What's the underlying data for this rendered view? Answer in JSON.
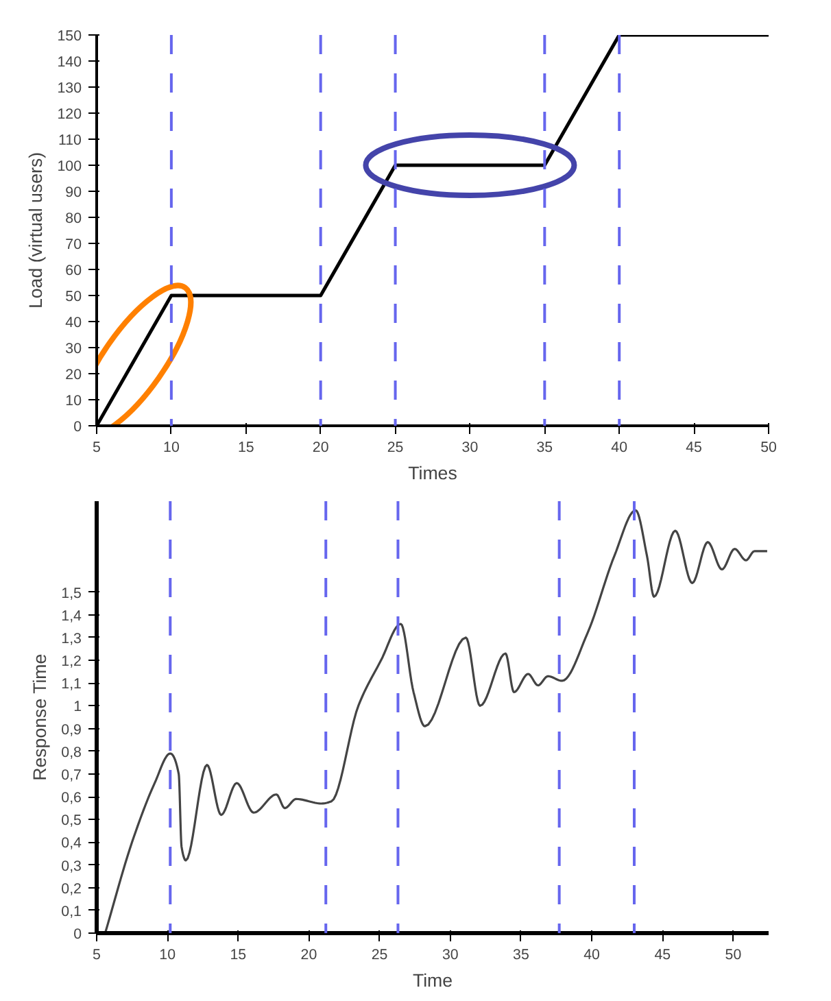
{
  "chart_data": [
    {
      "type": "line",
      "xlabel": "Times",
      "ylabel": "Load (virtual users)",
      "x": [
        5,
        10,
        20,
        25,
        35,
        40,
        50
      ],
      "series": [
        {
          "color": "#000000",
          "values": [
            0,
            50,
            50,
            100,
            100,
            150,
            150
          ]
        }
      ],
      "xlim": [
        5,
        50
      ],
      "xticks": [
        5,
        10,
        15,
        20,
        25,
        30,
        35,
        40,
        45,
        50
      ],
      "ylim": [
        0,
        150
      ],
      "yticks": [
        0,
        10,
        20,
        30,
        40,
        50,
        60,
        70,
        80,
        90,
        100,
        110,
        120,
        130,
        140,
        150
      ],
      "ref_lines": [
        {
          "axis": "x",
          "value": 10,
          "color": "#6666ee",
          "line_style": "dashed"
        },
        {
          "axis": "x",
          "value": 20,
          "color": "#6666ee",
          "line_style": "dashed"
        },
        {
          "axis": "x",
          "value": 25,
          "color": "#6666ee",
          "line_style": "dashed"
        },
        {
          "axis": "x",
          "value": 35,
          "color": "#6666ee",
          "line_style": "dashed"
        },
        {
          "axis": "x",
          "value": 40,
          "color": "#6666ee",
          "line_style": "dashed"
        }
      ],
      "grid": false,
      "line_style": "solid",
      "marker": "none"
    },
    {
      "type": "line",
      "xlabel": "Time",
      "ylabel": "Response Time",
      "x": [
        5.6,
        7.5,
        9.1,
        10.2,
        10.8,
        11.0,
        11.3,
        12.8,
        13.8,
        14.9,
        16.1,
        17.7,
        18.3,
        19.1,
        20.9,
        21.6,
        23.5,
        25.1,
        26.5,
        27.4,
        28.2,
        31.1,
        32.1,
        33.9,
        34.5,
        35.5,
        36.2,
        36.9,
        37.9,
        39.7,
        41.6,
        43.1,
        43.9,
        44.4,
        45.9,
        47.1,
        48.2,
        49.2,
        50.1,
        50.9,
        51.5,
        52.4
      ],
      "series": [
        {
          "color": "#444444",
          "values": [
            0,
            0.4,
            0.66,
            0.79,
            0.7,
            0.38,
            0.32,
            0.74,
            0.52,
            0.66,
            0.53,
            0.61,
            0.55,
            0.59,
            0.57,
            0.58,
            1.0,
            1.2,
            1.36,
            1.06,
            0.91,
            1.3,
            1.0,
            1.23,
            1.06,
            1.14,
            1.09,
            1.13,
            1.11,
            1.32,
            1.66,
            1.86,
            1.66,
            1.48,
            1.77,
            1.54,
            1.72,
            1.6,
            1.69,
            1.64,
            1.68,
            1.68
          ]
        }
      ],
      "xlim": [
        5,
        52.5
      ],
      "xticks": [
        5,
        10,
        15,
        20,
        25,
        30,
        35,
        40,
        45,
        50
      ],
      "ylim": [
        0,
        1.9
      ],
      "yticks": [
        0,
        {
          "value": 0.1,
          "label": "0,1"
        },
        {
          "value": 0.2,
          "label": "0,2"
        },
        {
          "value": 0.3,
          "label": "0,3"
        },
        {
          "value": 0.4,
          "label": "0,4"
        },
        {
          "value": 0.5,
          "label": "0,5"
        },
        {
          "value": 0.6,
          "label": "0,6"
        },
        {
          "value": 0.7,
          "label": "0,7"
        },
        {
          "value": 0.8,
          "label": "0,8"
        },
        {
          "value": 0.9,
          "label": "0,9"
        },
        1,
        {
          "value": 1.1,
          "label": "1,1"
        },
        {
          "value": 1.2,
          "label": "1,2"
        },
        {
          "value": 1.3,
          "label": "1,3"
        },
        {
          "value": 1.4,
          "label": "1,4"
        },
        {
          "value": 1.5,
          "label": "1,5"
        }
      ],
      "ref_lines": [
        {
          "axis": "x",
          "value": 10.2,
          "color": "#6666ee",
          "line_style": "dashed"
        },
        {
          "axis": "x",
          "value": 21.2,
          "color": "#6666ee",
          "line_style": "dashed"
        },
        {
          "axis": "x",
          "value": 26.3,
          "color": "#6666ee",
          "line_style": "dashed"
        },
        {
          "axis": "x",
          "value": 37.7,
          "color": "#6666ee",
          "line_style": "dashed"
        },
        {
          "axis": "x",
          "value": 43.0,
          "color": "#6666ee",
          "line_style": "dashed"
        }
      ],
      "grid": false,
      "line_style": "solid",
      "marker": "none"
    }
  ]
}
